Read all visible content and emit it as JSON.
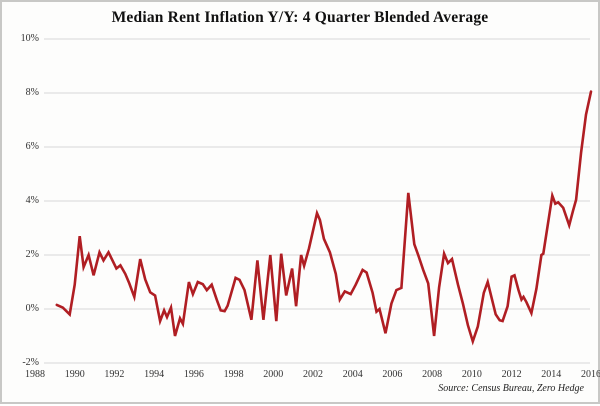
{
  "colors": {
    "line": "#b01e23",
    "grid": "#d8d8d8",
    "text": "#333333",
    "title": "#111111",
    "border": "#c8c8c6",
    "bg": "#fdfdfc"
  },
  "chart_data": {
    "type": "line",
    "title": "Median Rent Inflation Y/Y: 4 Quarter Blended Average",
    "source": "Source: Census Bureau, Zero Hedge",
    "xlabel": "",
    "ylabel": "",
    "grid": true,
    "legend": "none",
    "xlim": [
      1988,
      2016.3
    ],
    "ylim": [
      -2,
      10
    ],
    "y_ticks": [
      {
        "v": 10,
        "label": "10%"
      },
      {
        "v": 8,
        "label": "8%"
      },
      {
        "v": 6,
        "label": "6%"
      },
      {
        "v": 4,
        "label": "4%"
      },
      {
        "v": 2,
        "label": "2%"
      },
      {
        "v": 0,
        "label": "0%"
      },
      {
        "v": -2,
        "label": "-2%"
      }
    ],
    "x_ticks": [
      {
        "v": 1988,
        "label": "1988"
      },
      {
        "v": 1990,
        "label": "1990"
      },
      {
        "v": 1992,
        "label": "1992"
      },
      {
        "v": 1994,
        "label": "1994"
      },
      {
        "v": 1996,
        "label": "1996"
      },
      {
        "v": 1998,
        "label": "1998"
      },
      {
        "v": 2000,
        "label": "2000"
      },
      {
        "v": 2002,
        "label": "2002"
      },
      {
        "v": 2004,
        "label": "2004"
      },
      {
        "v": 2006,
        "label": "2006"
      },
      {
        "v": 2008,
        "label": "2008"
      },
      {
        "v": 2010,
        "label": "2010"
      },
      {
        "v": 2012,
        "label": "2012"
      },
      {
        "v": 2014,
        "label": "2014"
      },
      {
        "v": 2016,
        "label": "2016"
      }
    ],
    "series": [
      {
        "name": "Median Rent Inflation Y/Y (4-quarter blended average, %)",
        "points": [
          [
            1989.1,
            0.15
          ],
          [
            1989.4,
            0.05
          ],
          [
            1989.75,
            -0.2
          ],
          [
            1990.0,
            0.9
          ],
          [
            1990.25,
            2.7
          ],
          [
            1990.45,
            1.55
          ],
          [
            1990.7,
            2.0
          ],
          [
            1990.95,
            1.25
          ],
          [
            1991.25,
            2.1
          ],
          [
            1991.45,
            1.8
          ],
          [
            1991.7,
            2.1
          ],
          [
            1992.1,
            1.5
          ],
          [
            1992.3,
            1.62
          ],
          [
            1992.55,
            1.3
          ],
          [
            1992.75,
            0.95
          ],
          [
            1993.0,
            0.45
          ],
          [
            1993.3,
            1.85
          ],
          [
            1993.55,
            1.1
          ],
          [
            1993.8,
            0.62
          ],
          [
            1994.05,
            0.5
          ],
          [
            1994.3,
            -0.45
          ],
          [
            1994.5,
            -0.05
          ],
          [
            1994.65,
            -0.3
          ],
          [
            1994.85,
            0.05
          ],
          [
            1995.05,
            -1.0
          ],
          [
            1995.3,
            -0.35
          ],
          [
            1995.45,
            -0.55
          ],
          [
            1995.75,
            1.0
          ],
          [
            1995.95,
            0.55
          ],
          [
            1996.2,
            1.0
          ],
          [
            1996.45,
            0.92
          ],
          [
            1996.65,
            0.7
          ],
          [
            1996.9,
            0.9
          ],
          [
            1997.15,
            0.35
          ],
          [
            1997.35,
            -0.05
          ],
          [
            1997.55,
            -0.08
          ],
          [
            1997.7,
            0.12
          ],
          [
            1998.1,
            1.15
          ],
          [
            1998.3,
            1.08
          ],
          [
            1998.55,
            0.7
          ],
          [
            1998.9,
            -0.4
          ],
          [
            1999.2,
            1.8
          ],
          [
            1999.5,
            -0.4
          ],
          [
            1999.85,
            2.0
          ],
          [
            2000.15,
            -0.45
          ],
          [
            2000.4,
            2.05
          ],
          [
            2000.65,
            0.5
          ],
          [
            2000.95,
            1.5
          ],
          [
            2001.15,
            0.1
          ],
          [
            2001.4,
            2.0
          ],
          [
            2001.55,
            1.6
          ],
          [
            2001.8,
            2.25
          ],
          [
            2002.2,
            3.55
          ],
          [
            2002.35,
            3.3
          ],
          [
            2002.55,
            2.6
          ],
          [
            2002.85,
            2.1
          ],
          [
            2003.15,
            1.3
          ],
          [
            2003.35,
            0.35
          ],
          [
            2003.6,
            0.65
          ],
          [
            2003.9,
            0.55
          ],
          [
            2004.15,
            0.9
          ],
          [
            2004.5,
            1.45
          ],
          [
            2004.7,
            1.35
          ],
          [
            2005.0,
            0.6
          ],
          [
            2005.2,
            -0.1
          ],
          [
            2005.35,
            0.0
          ],
          [
            2005.65,
            -0.9
          ],
          [
            2005.95,
            0.2
          ],
          [
            2006.2,
            0.7
          ],
          [
            2006.45,
            0.78
          ],
          [
            2006.8,
            4.3
          ],
          [
            2007.1,
            2.4
          ],
          [
            2007.3,
            2.0
          ],
          [
            2007.55,
            1.45
          ],
          [
            2007.8,
            0.95
          ],
          [
            2008.1,
            -1.0
          ],
          [
            2008.35,
            0.8
          ],
          [
            2008.6,
            2.05
          ],
          [
            2008.8,
            1.7
          ],
          [
            2009.0,
            1.85
          ],
          [
            2009.3,
            0.9
          ],
          [
            2009.55,
            0.2
          ],
          [
            2009.8,
            -0.6
          ],
          [
            2010.05,
            -1.2
          ],
          [
            2010.3,
            -0.65
          ],
          [
            2010.6,
            0.6
          ],
          [
            2010.8,
            1.0
          ],
          [
            2011.0,
            0.4
          ],
          [
            2011.2,
            -0.2
          ],
          [
            2011.4,
            -0.42
          ],
          [
            2011.55,
            -0.45
          ],
          [
            2011.8,
            0.1
          ],
          [
            2012.0,
            1.2
          ],
          [
            2012.15,
            1.25
          ],
          [
            2012.35,
            0.7
          ],
          [
            2012.5,
            0.35
          ],
          [
            2012.6,
            0.45
          ],
          [
            2012.75,
            0.25
          ],
          [
            2013.0,
            -0.15
          ],
          [
            2013.25,
            0.75
          ],
          [
            2013.5,
            2.0
          ],
          [
            2013.6,
            2.05
          ],
          [
            2014.05,
            4.2
          ],
          [
            2014.2,
            3.9
          ],
          [
            2014.35,
            3.95
          ],
          [
            2014.6,
            3.75
          ],
          [
            2014.9,
            3.1
          ],
          [
            2015.1,
            3.65
          ],
          [
            2015.25,
            4.05
          ],
          [
            2015.5,
            5.8
          ],
          [
            2015.75,
            7.2
          ],
          [
            2016.0,
            8.05
          ]
        ]
      }
    ]
  }
}
